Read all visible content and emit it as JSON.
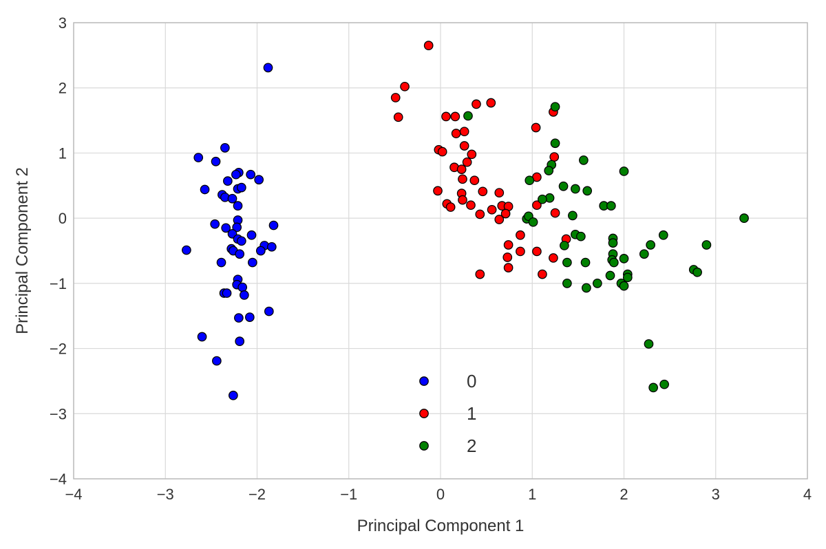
{
  "chart_data": {
    "type": "scatter",
    "xlabel": "Principal Component 1",
    "ylabel": "Principal Component 2",
    "xlim": [
      -4,
      4
    ],
    "ylim": [
      -4,
      3
    ],
    "x_ticks": [
      -4,
      -3,
      -2,
      -1,
      0,
      1,
      2,
      3,
      4
    ],
    "y_ticks": [
      -4,
      -3,
      -2,
      -1,
      0,
      1,
      2,
      3
    ],
    "x_tick_labels": [
      "−4",
      "−3",
      "−2",
      "−1",
      "0",
      "1",
      "2",
      "3",
      "4"
    ],
    "y_tick_labels": [
      "−4",
      "−3",
      "−2",
      "−1",
      "0",
      "1",
      "2",
      "3"
    ],
    "grid": true,
    "legend_position": "lower center",
    "series": [
      {
        "name": "0",
        "color": "#0000ff",
        "points": [
          [
            -1.88,
            2.31
          ],
          [
            -2.35,
            1.08
          ],
          [
            -2.64,
            0.93
          ],
          [
            -2.45,
            0.87
          ],
          [
            -2.2,
            0.7
          ],
          [
            -2.07,
            0.67
          ],
          [
            -2.23,
            0.67
          ],
          [
            -2.32,
            0.57
          ],
          [
            -1.98,
            0.59
          ],
          [
            -2.21,
            0.45
          ],
          [
            -2.17,
            0.47
          ],
          [
            -2.57,
            0.44
          ],
          [
            -2.38,
            0.36
          ],
          [
            -2.35,
            0.32
          ],
          [
            -2.27,
            0.3
          ],
          [
            -2.21,
            0.19
          ],
          [
            -2.46,
            -0.09
          ],
          [
            -2.21,
            -0.03
          ],
          [
            -2.34,
            -0.15
          ],
          [
            -2.22,
            -0.14
          ],
          [
            -1.82,
            -0.11
          ],
          [
            -2.27,
            -0.24
          ],
          [
            -2.06,
            -0.26
          ],
          [
            -2.21,
            -0.32
          ],
          [
            -2.17,
            -0.35
          ],
          [
            -1.92,
            -0.42
          ],
          [
            -1.84,
            -0.44
          ],
          [
            -2.28,
            -0.47
          ],
          [
            -2.26,
            -0.5
          ],
          [
            -2.19,
            -0.55
          ],
          [
            -1.96,
            -0.5
          ],
          [
            -2.77,
            -0.49
          ],
          [
            -2.39,
            -0.68
          ],
          [
            -2.05,
            -0.68
          ],
          [
            -2.21,
            -0.94
          ],
          [
            -2.22,
            -1.02
          ],
          [
            -2.16,
            -1.06
          ],
          [
            -2.36,
            -1.15
          ],
          [
            -2.33,
            -1.15
          ],
          [
            -2.14,
            -1.18
          ],
          [
            -1.87,
            -1.43
          ],
          [
            -2.08,
            -1.52
          ],
          [
            -2.2,
            -1.53
          ],
          [
            -2.6,
            -1.82
          ],
          [
            -2.19,
            -1.89
          ],
          [
            -2.44,
            -2.19
          ],
          [
            -2.26,
            -2.72
          ]
        ]
      },
      {
        "name": "1",
        "color": "#ff0000",
        "points": [
          [
            -0.13,
            2.65
          ],
          [
            -0.39,
            2.02
          ],
          [
            -0.49,
            1.85
          ],
          [
            -0.46,
            1.55
          ],
          [
            0.39,
            1.75
          ],
          [
            0.55,
            1.77
          ],
          [
            0.06,
            1.56
          ],
          [
            0.16,
            1.56
          ],
          [
            1.04,
            1.39
          ],
          [
            1.23,
            1.63
          ],
          [
            0.17,
            1.3
          ],
          [
            0.26,
            1.33
          ],
          [
            0.26,
            1.11
          ],
          [
            -0.02,
            1.05
          ],
          [
            0.02,
            1.02
          ],
          [
            0.34,
            0.98
          ],
          [
            1.24,
            0.94
          ],
          [
            0.29,
            0.86
          ],
          [
            0.15,
            0.78
          ],
          [
            0.23,
            0.75
          ],
          [
            1.05,
            0.63
          ],
          [
            0.24,
            0.6
          ],
          [
            0.37,
            0.58
          ],
          [
            -0.03,
            0.42
          ],
          [
            0.23,
            0.38
          ],
          [
            0.46,
            0.41
          ],
          [
            0.64,
            0.39
          ],
          [
            0.24,
            0.28
          ],
          [
            0.07,
            0.22
          ],
          [
            0.11,
            0.17
          ],
          [
            0.33,
            0.2
          ],
          [
            0.56,
            0.13
          ],
          [
            0.67,
            0.19
          ],
          [
            0.74,
            0.18
          ],
          [
            1.05,
            0.2
          ],
          [
            0.43,
            0.06
          ],
          [
            0.71,
            0.07
          ],
          [
            1.25,
            0.08
          ],
          [
            0.64,
            -0.02
          ],
          [
            0.87,
            -0.26
          ],
          [
            1.37,
            -0.32
          ],
          [
            0.74,
            -0.41
          ],
          [
            0.87,
            -0.51
          ],
          [
            1.05,
            -0.51
          ],
          [
            0.73,
            -0.6
          ],
          [
            1.23,
            -0.61
          ],
          [
            0.74,
            -0.76
          ],
          [
            0.43,
            -0.86
          ],
          [
            1.11,
            -0.86
          ]
        ]
      },
      {
        "name": "2",
        "color": "#008000",
        "points": [
          [
            1.25,
            1.71
          ],
          [
            0.3,
            1.57
          ],
          [
            1.25,
            1.15
          ],
          [
            1.56,
            0.89
          ],
          [
            2.0,
            0.72
          ],
          [
            1.21,
            0.82
          ],
          [
            1.18,
            0.73
          ],
          [
            0.97,
            0.58
          ],
          [
            1.34,
            0.49
          ],
          [
            1.47,
            0.45
          ],
          [
            1.6,
            0.42
          ],
          [
            1.19,
            0.31
          ],
          [
            1.11,
            0.29
          ],
          [
            1.78,
            0.19
          ],
          [
            1.86,
            0.19
          ],
          [
            3.31,
            0.0
          ],
          [
            1.44,
            0.04
          ],
          [
            0.94,
            -0.01
          ],
          [
            0.96,
            0.03
          ],
          [
            1.01,
            -0.06
          ],
          [
            1.47,
            -0.25
          ],
          [
            1.53,
            -0.28
          ],
          [
            2.43,
            -0.26
          ],
          [
            1.88,
            -0.31
          ],
          [
            1.88,
            -0.38
          ],
          [
            2.29,
            -0.41
          ],
          [
            2.9,
            -0.41
          ],
          [
            1.35,
            -0.42
          ],
          [
            1.88,
            -0.55
          ],
          [
            2.22,
            -0.55
          ],
          [
            1.87,
            -0.64
          ],
          [
            1.89,
            -0.68
          ],
          [
            2.0,
            -0.62
          ],
          [
            1.38,
            -0.68
          ],
          [
            1.58,
            -0.68
          ],
          [
            2.76,
            -0.79
          ],
          [
            2.8,
            -0.83
          ],
          [
            2.04,
            -0.86
          ],
          [
            1.85,
            -0.88
          ],
          [
            2.04,
            -0.91
          ],
          [
            1.38,
            -1.0
          ],
          [
            1.71,
            -1.0
          ],
          [
            1.97,
            -1.0
          ],
          [
            2.0,
            -1.04
          ],
          [
            1.59,
            -1.07
          ],
          [
            2.27,
            -1.93
          ],
          [
            2.32,
            -2.6
          ],
          [
            2.44,
            -2.55
          ]
        ]
      }
    ]
  }
}
